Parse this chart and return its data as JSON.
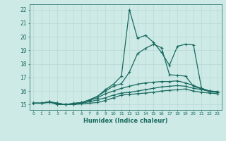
{
  "xlabel": "Humidex (Indice chaleur)",
  "background_color": "#ceeae7",
  "grid_color": "#b8d8d5",
  "line_color": "#1a6b60",
  "xlim": [
    -0.5,
    23.5
  ],
  "ylim": [
    14.6,
    22.4
  ],
  "xticks": [
    0,
    1,
    2,
    3,
    4,
    5,
    6,
    7,
    8,
    9,
    10,
    11,
    12,
    13,
    14,
    15,
    16,
    17,
    18,
    19,
    20,
    21,
    22,
    23
  ],
  "yticks": [
    15,
    16,
    17,
    18,
    19,
    20,
    21,
    22
  ],
  "series": [
    [
      15.1,
      15.1,
      15.15,
      15.1,
      15.0,
      15.0,
      15.05,
      15.1,
      15.15,
      15.3,
      15.5,
      15.7,
      15.75,
      15.8,
      15.85,
      15.9,
      16.0,
      16.05,
      16.1,
      16.15,
      16.0,
      15.9,
      15.85,
      15.8
    ],
    [
      15.1,
      15.1,
      15.2,
      15.0,
      15.0,
      15.05,
      15.1,
      15.2,
      15.35,
      15.5,
      15.7,
      15.85,
      15.9,
      16.0,
      16.1,
      16.2,
      16.3,
      16.35,
      16.4,
      16.35,
      16.2,
      16.1,
      16.0,
      15.95
    ],
    [
      15.1,
      15.1,
      15.2,
      15.0,
      15.0,
      15.1,
      15.15,
      15.3,
      15.5,
      15.8,
      16.0,
      16.2,
      16.35,
      16.5,
      16.6,
      16.65,
      16.7,
      16.7,
      16.75,
      16.6,
      16.4,
      16.2,
      16.0,
      15.9
    ],
    [
      15.1,
      15.1,
      15.2,
      15.1,
      15.0,
      15.05,
      15.15,
      15.35,
      15.6,
      16.0,
      16.35,
      16.55,
      17.4,
      18.75,
      19.15,
      19.45,
      19.2,
      17.2,
      17.15,
      17.1,
      16.35,
      16.15,
      15.95,
      15.9
    ]
  ],
  "peak_series": [
    15.1,
    15.1,
    15.2,
    15.1,
    15.0,
    15.0,
    15.1,
    15.35,
    15.6,
    16.1,
    16.5,
    17.1,
    22.0,
    19.9,
    20.1,
    19.6,
    18.85,
    17.9,
    19.3,
    19.45,
    19.4,
    16.2,
    16.0,
    15.95
  ]
}
